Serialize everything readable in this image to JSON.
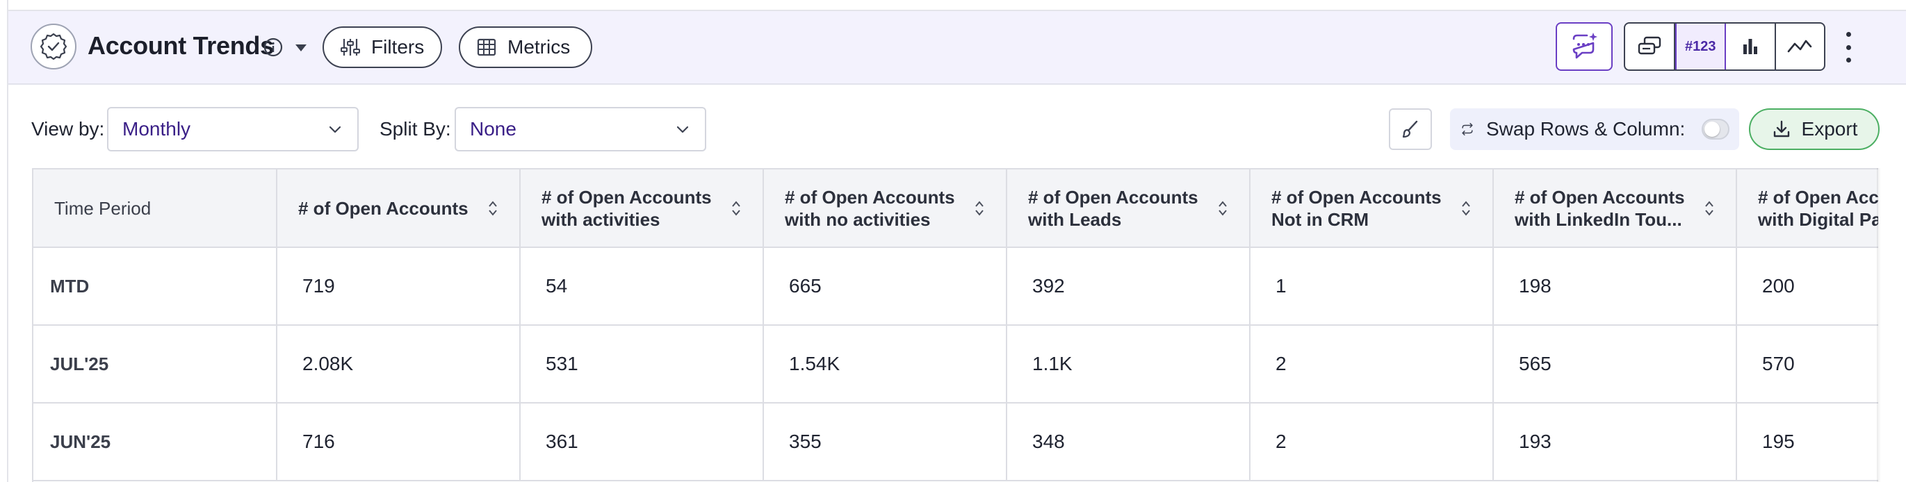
{
  "header": {
    "title": "Account Trends",
    "filters_label": "Filters",
    "metrics_label": "Metrics",
    "number_view_label": "#123"
  },
  "controls": {
    "view_by_label": "View by:",
    "view_by_value": "Monthly",
    "split_by_label": "Split By:",
    "split_by_value": "None",
    "swap_label": "Swap Rows & Column:",
    "swap_enabled": false,
    "export_label": "Export"
  },
  "table": {
    "columns": [
      "Time Period",
      "# of Open Accounts",
      "# of Open Accounts with activities",
      "# of Open Accounts with no activities",
      "# of Open Accounts with Leads",
      "# of Open Accounts Not in CRM",
      "# of Open Accounts with LinkedIn Tou...",
      "# of Open Accounts with Digital Pa"
    ],
    "rows": [
      [
        "MTD",
        "719",
        "54",
        "665",
        "392",
        "1",
        "198",
        "200"
      ],
      [
        "JUL'25",
        "2.08K",
        "531",
        "1.54K",
        "1.1K",
        "2",
        "565",
        "570"
      ],
      [
        "JUN'25",
        "716",
        "361",
        "355",
        "348",
        "2",
        "193",
        "195"
      ]
    ]
  },
  "colors": {
    "accent": "#6a3fc4",
    "header_bg": "#f3f2fd",
    "export_green": "#4caf63",
    "select_text": "#3a1f87"
  }
}
